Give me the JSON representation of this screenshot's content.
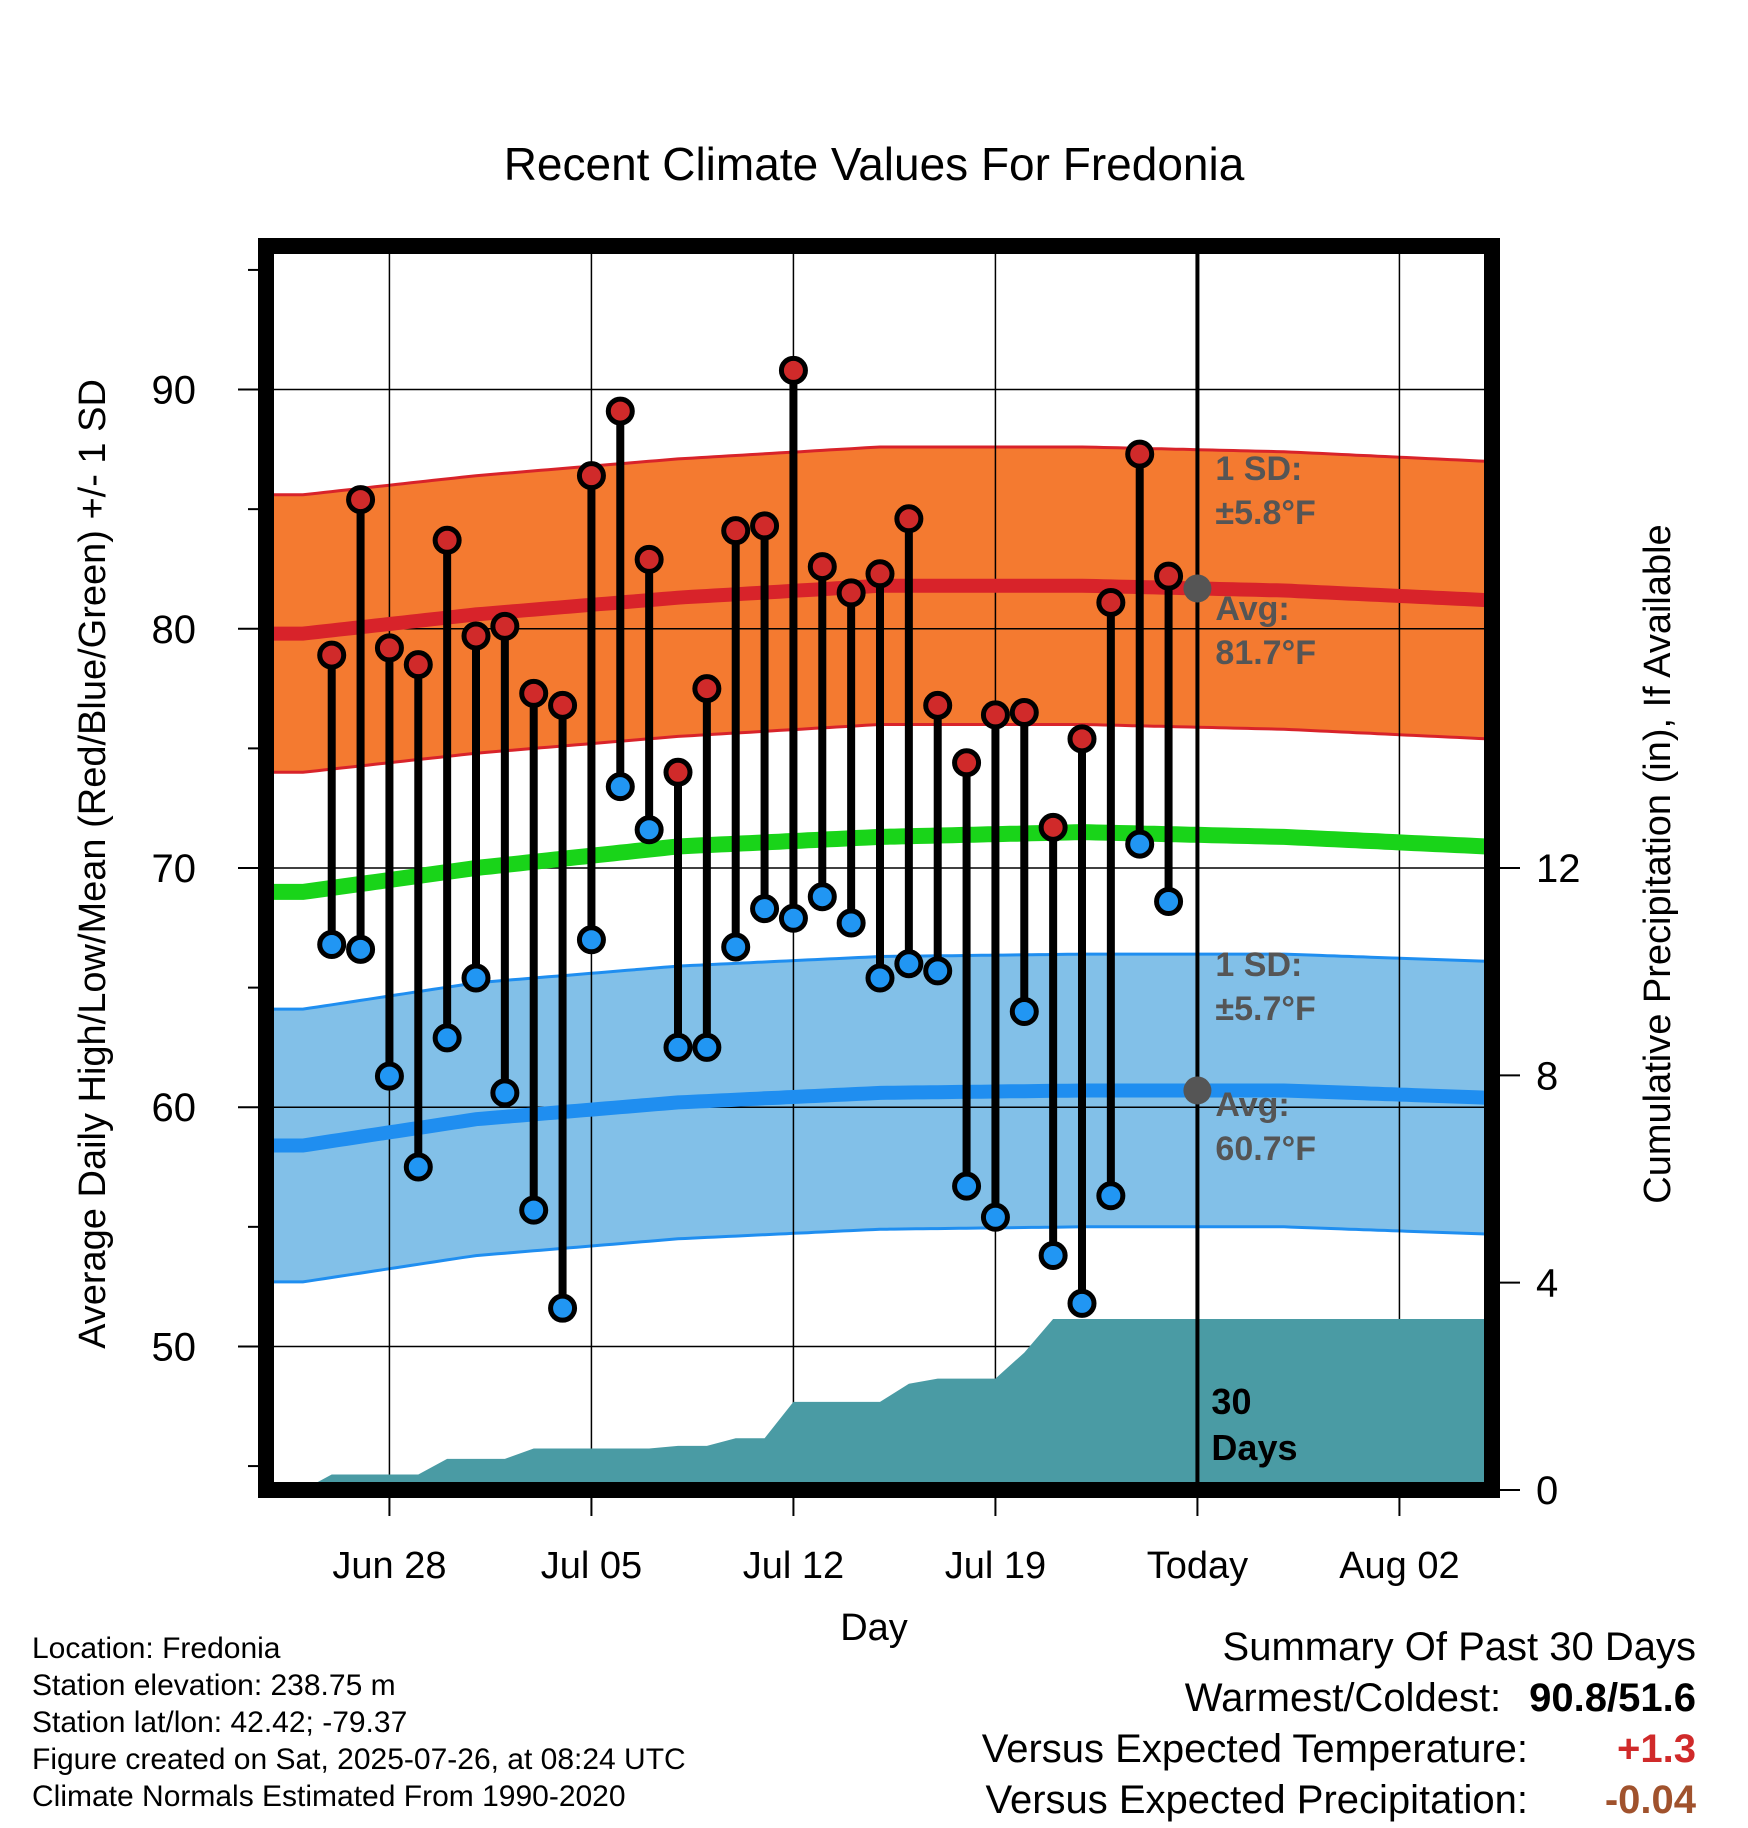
{
  "colors": {
    "high_band": "#f47a30",
    "high_band_edge": "#d8232a",
    "high_avg": "#d8232a",
    "low_band": "#82c0e8",
    "low_band_edge": "#1f8ef0",
    "low_avg": "#1f8ef0",
    "mean_line": "#19d419",
    "precip_fill": "#4a9ba4",
    "high_dot": "#d02a2a",
    "low_dot": "#2196f3",
    "annotation": "#555555",
    "pos_anomaly": "#d02a2a",
    "neg_anomaly": "#a0522d"
  },
  "chart_data": {
    "type": "line",
    "title": "Recent Climate Values For Fredonia",
    "xlabel": "Day",
    "ylabel": "Average Daily High/Low/Mean (Red/Blue/Green) +/- 1 SD",
    "y2label": "Cumulative Precipitation (in), If Available",
    "x_range": [
      "2025-06-24",
      "2025-08-05"
    ],
    "ylim": [
      44,
      96
    ],
    "y2lim": [
      0,
      24
    ],
    "yticks": [
      50,
      60,
      70,
      80,
      90
    ],
    "y2ticks": [
      0,
      4,
      8,
      12
    ],
    "grid": true,
    "x_ticks": [
      {
        "date": "2025-06-28",
        "label": "Jun 28"
      },
      {
        "date": "2025-07-05",
        "label": "Jul 05"
      },
      {
        "date": "2025-07-12",
        "label": "Jul 12"
      },
      {
        "date": "2025-07-19",
        "label": "Jul 19"
      },
      {
        "date": "2025-07-26",
        "label": "Today"
      },
      {
        "date": "2025-08-02",
        "label": "Aug 02"
      }
    ],
    "today": "2025-07-26",
    "days": [
      "2025-06-26",
      "2025-06-27",
      "2025-06-28",
      "2025-06-29",
      "2025-06-30",
      "2025-07-01",
      "2025-07-02",
      "2025-07-03",
      "2025-07-04",
      "2025-07-05",
      "2025-07-06",
      "2025-07-07",
      "2025-07-08",
      "2025-07-09",
      "2025-07-10",
      "2025-07-11",
      "2025-07-12",
      "2025-07-13",
      "2025-07-14",
      "2025-07-15",
      "2025-07-16",
      "2025-07-17",
      "2025-07-18",
      "2025-07-19",
      "2025-07-20",
      "2025-07-21",
      "2025-07-22",
      "2025-07-23",
      "2025-07-24",
      "2025-07-25"
    ],
    "daily_high": [
      78.9,
      85.4,
      79.2,
      78.5,
      83.7,
      79.7,
      80.1,
      77.3,
      76.8,
      86.4,
      89.1,
      82.9,
      74.0,
      77.5,
      84.1,
      84.3,
      90.8,
      82.6,
      81.5,
      82.3,
      84.6,
      76.8,
      74.4,
      76.4,
      76.5,
      71.7,
      75.4,
      81.1,
      87.3,
      82.2
    ],
    "daily_low": [
      66.8,
      66.6,
      61.3,
      57.5,
      62.9,
      65.4,
      60.6,
      55.7,
      51.6,
      67.0,
      73.4,
      71.6,
      62.5,
      62.5,
      66.7,
      68.3,
      67.9,
      68.8,
      67.7,
      65.4,
      66.0,
      65.7,
      56.7,
      55.4,
      64.0,
      53.8,
      51.8,
      56.3,
      71.0,
      68.6
    ],
    "normals": {
      "dates": [
        "2025-06-25",
        "2025-07-01",
        "2025-07-08",
        "2025-07-15",
        "2025-07-22",
        "2025-07-29",
        "2025-08-05"
      ],
      "avg_high": [
        79.8,
        80.6,
        81.3,
        81.8,
        81.8,
        81.6,
        81.2
      ],
      "avg_mean": [
        69.0,
        70.0,
        70.9,
        71.3,
        71.5,
        71.3,
        70.9
      ],
      "avg_low": [
        58.4,
        59.5,
        60.2,
        60.6,
        60.7,
        60.7,
        60.4
      ]
    },
    "sd_high": 5.8,
    "sd_low": 5.7,
    "precip": {
      "dates": [
        "2025-06-25",
        "2025-06-26",
        "2025-06-27",
        "2025-06-28",
        "2025-06-29",
        "2025-06-30",
        "2025-07-01",
        "2025-07-02",
        "2025-07-03",
        "2025-07-04",
        "2025-07-05",
        "2025-07-06",
        "2025-07-07",
        "2025-07-08",
        "2025-07-09",
        "2025-07-10",
        "2025-07-11",
        "2025-07-12",
        "2025-07-13",
        "2025-07-14",
        "2025-07-15",
        "2025-07-16",
        "2025-07-17",
        "2025-07-18",
        "2025-07-19",
        "2025-07-20",
        "2025-07-21",
        "2025-08-05"
      ],
      "cumulative": [
        0.0,
        0.3,
        0.3,
        0.3,
        0.3,
        0.6,
        0.6,
        0.6,
        0.8,
        0.8,
        0.8,
        0.8,
        0.8,
        0.85,
        0.85,
        1.0,
        1.0,
        1.7,
        1.7,
        1.7,
        1.7,
        2.05,
        2.15,
        2.15,
        2.15,
        2.65,
        3.3,
        3.3
      ]
    },
    "annotations": {
      "high_sd_label": "1 SD:",
      "high_sd_value": "±5.8°F",
      "high_avg_label": "Avg:",
      "high_avg_value": "81.7°F",
      "low_sd_label": "1 SD:",
      "low_sd_value": "±5.7°F",
      "low_avg_label": "Avg:",
      "low_avg_value": "60.7°F",
      "days_num": "30",
      "days_word": "Days"
    }
  },
  "info": {
    "location": "Location: Fredonia",
    "elevation": "Station elevation: 238.75 m",
    "latlon": "Station lat/lon: 42.42; -79.37",
    "created": "Figure created on Sat, 2025-07-26, at 08:24 UTC",
    "normals": "Climate Normals Estimated From 1990-2020"
  },
  "summary": {
    "title": "Summary Of Past 30 Days",
    "warmest_label": "Warmest/Coldest:",
    "warmest_value": "90.8/51.6",
    "temp_label": "Versus Expected Temperature:",
    "temp_value": "+1.3",
    "precip_label": "Versus Expected Precipitation:",
    "precip_value": "-0.04"
  }
}
